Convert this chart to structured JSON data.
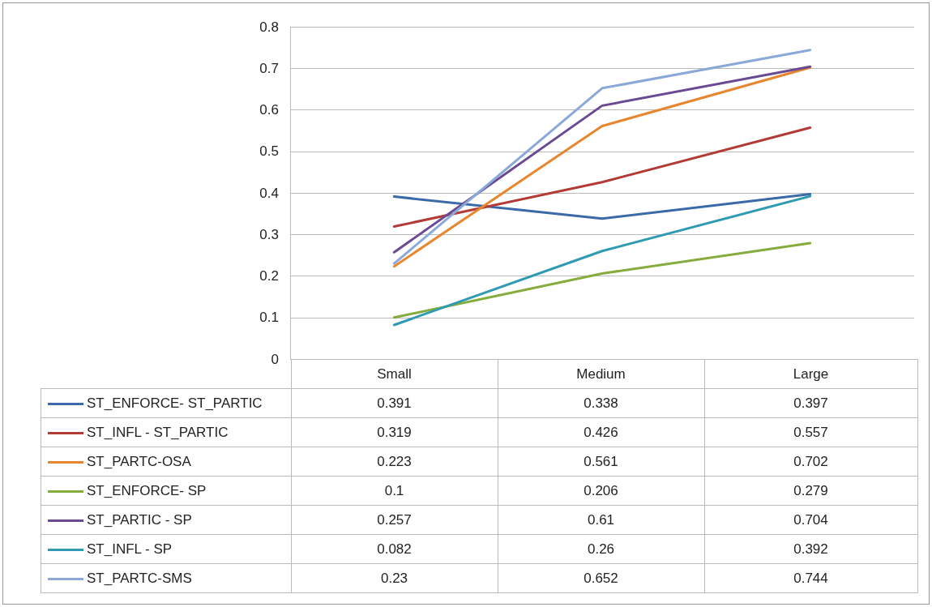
{
  "chart_data": {
    "type": "line",
    "categories": [
      "Small",
      "Medium",
      "Large"
    ],
    "series": [
      {
        "name": "ST_ENFORCE- ST_PARTIC",
        "color": "#3a6aa8",
        "values": [
          0.391,
          0.338,
          0.397
        ]
      },
      {
        "name": "ST_INFL - ST_PARTIC",
        "color": "#b33b36",
        "values": [
          0.319,
          0.426,
          0.557
        ]
      },
      {
        "name": "ST_PARTC-OSA",
        "color": "#e8862e",
        "values": [
          0.223,
          0.561,
          0.702
        ]
      },
      {
        "name": "ST_ENFORCE- SP",
        "color": "#86ac3e",
        "values": [
          0.1,
          0.206,
          0.279
        ]
      },
      {
        "name": "ST_PARTIC - SP",
        "color": "#6a4a93",
        "values": [
          0.257,
          0.61,
          0.704
        ]
      },
      {
        "name": "ST_INFL - SP",
        "color": "#2f9bb3",
        "values": [
          0.082,
          0.26,
          0.392
        ]
      },
      {
        "name": "ST_PARTC-SMS",
        "color": "#8aa9d8",
        "values": [
          0.23,
          0.652,
          0.744
        ]
      }
    ],
    "ylim": [
      0,
      0.8
    ],
    "yticks": [
      0,
      0.1,
      0.2,
      0.3,
      0.4,
      0.5,
      0.6,
      0.7,
      0.8
    ],
    "grid": "y",
    "legend": "bottom left",
    "data_labels": true,
    "marker": "none",
    "line_style": "solid"
  }
}
